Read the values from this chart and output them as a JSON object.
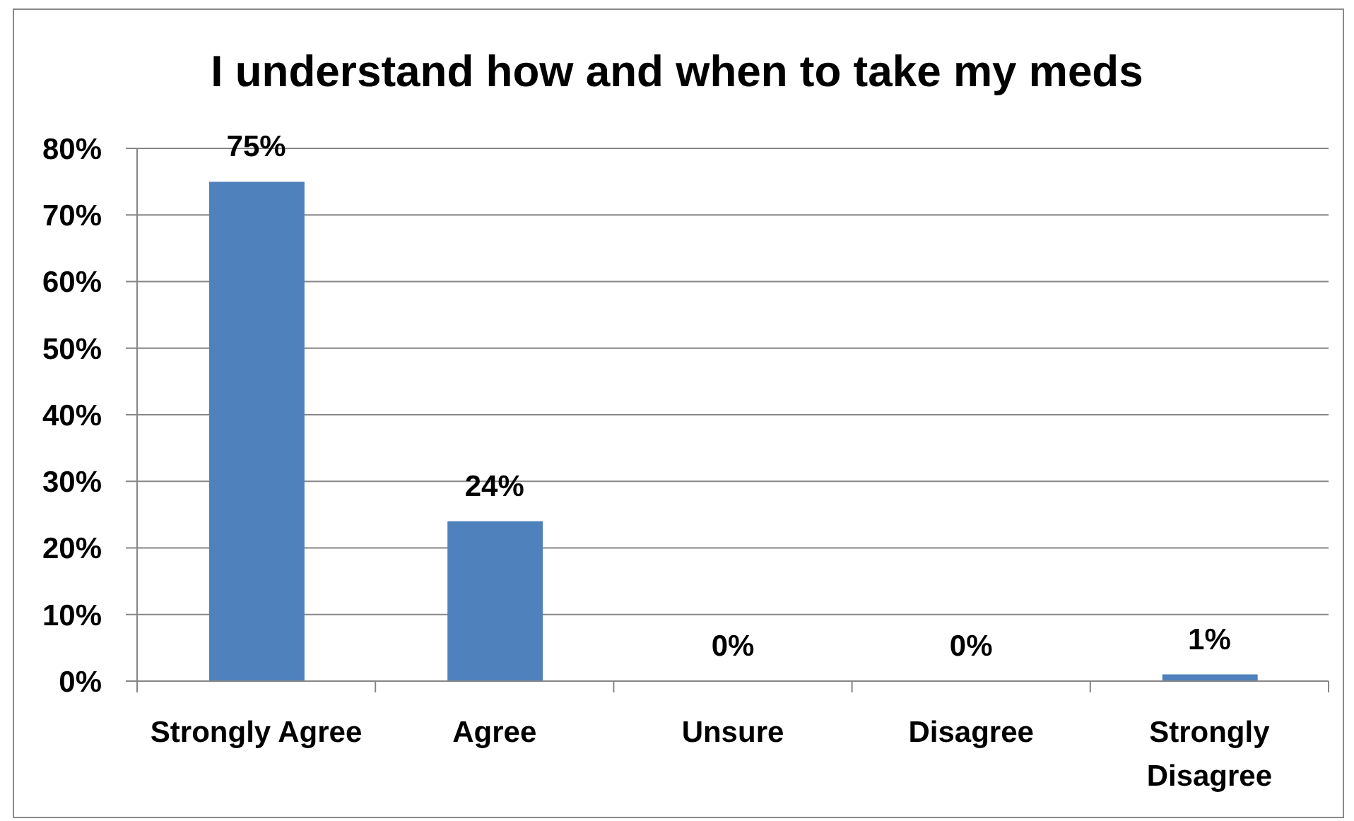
{
  "chart_data": {
    "type": "bar",
    "title": "I understand how and when to take my meds",
    "categories": [
      "Strongly Agree",
      "Agree",
      "Unsure",
      "Disagree",
      "Strongly Disagree"
    ],
    "values": [
      75,
      24,
      0,
      0,
      1
    ],
    "value_labels": [
      "75%",
      "24%",
      "0%",
      "0%",
      "1%"
    ],
    "color": "#4f81bd",
    "ylim": [
      0,
      80
    ],
    "yticks": [
      {
        "value": 0,
        "label": "0%"
      },
      {
        "value": 10,
        "label": "10%"
      },
      {
        "value": 20,
        "label": "20%"
      },
      {
        "value": 30,
        "label": "30%"
      },
      {
        "value": 40,
        "label": "40%"
      },
      {
        "value": 50,
        "label": "50%"
      },
      {
        "value": 60,
        "label": "60%"
      },
      {
        "value": 70,
        "label": "70%"
      },
      {
        "value": 80,
        "label": "80%"
      }
    ],
    "grid": "y"
  }
}
